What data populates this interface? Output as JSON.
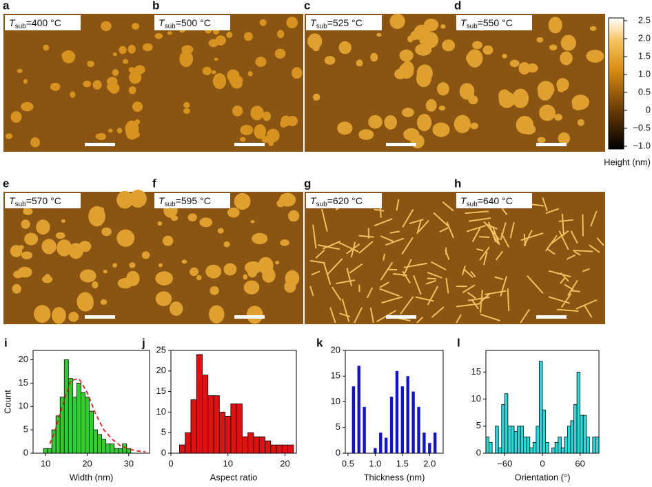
{
  "figure": {
    "panels": [
      {
        "letter": "a",
        "tag": {
          "symbol": "T",
          "subscript": "sub",
          "value": "=400 °C"
        }
      },
      {
        "letter": "b",
        "tag": {
          "symbol": "T",
          "subscript": "sub",
          "value": "=500 °C"
        }
      },
      {
        "letter": "c",
        "tag": {
          "symbol": "T",
          "subscript": "sub",
          "value": "=525 °C"
        }
      },
      {
        "letter": "d",
        "tag": {
          "symbol": "T",
          "subscript": "sub",
          "value": "=550 °C"
        }
      },
      {
        "letter": "e",
        "tag": {
          "symbol": "T",
          "subscript": "sub",
          "value": "=570 °C"
        }
      },
      {
        "letter": "f",
        "tag": {
          "symbol": "T",
          "subscript": "sub",
          "value": "=595 °C"
        }
      },
      {
        "letter": "g",
        "tag": {
          "symbol": "T",
          "subscript": "sub",
          "value": "=620 °C"
        }
      },
      {
        "letter": "h",
        "tag": {
          "symbol": "T",
          "subscript": "sub",
          "value": "=640 °C"
        }
      }
    ],
    "colorbar": {
      "label": "Height (nm)",
      "range": [
        -1,
        2.5
      ],
      "ticks": [
        2.5,
        {
          "value": 2,
          "label": "2.0"
        },
        1.5,
        {
          "value": 1,
          "label": "1.0"
        },
        0.5,
        0,
        {
          "value": -0.5,
          "label": "−0.5"
        },
        {
          "value": -1,
          "label": "−1.0"
        }
      ]
    }
  },
  "chart_data": [
    {
      "type": "histogram",
      "panel_label": "i",
      "xlabel": "Width (nm)",
      "ylabel": "Count",
      "color": "#33cc33",
      "bins": [
        9.5,
        10.5,
        11.5,
        12.5,
        13.5,
        14.5,
        15.5,
        16.5,
        17.5,
        18.5,
        19.5,
        20.5,
        21.5,
        22.5,
        23.5,
        24.5,
        25.5,
        26.5,
        27.5,
        28.5,
        29.5,
        30.5
      ],
      "values": [
        1,
        1,
        5,
        8,
        12,
        20,
        16,
        12,
        15,
        13,
        12,
        9,
        5,
        4,
        3,
        2,
        2,
        1,
        1,
        2,
        1
      ],
      "fit": {
        "color": "#e02020",
        "x": [
          11,
          12,
          14,
          16,
          18,
          20,
          22,
          24,
          26,
          28,
          30,
          32,
          34
        ],
        "values": [
          2,
          4,
          10,
          15.5,
          16,
          13,
          8.5,
          5,
          3,
          1.6,
          0.9,
          0.5,
          0.3
        ]
      },
      "xlim": [
        7,
        35
      ],
      "xticks": [
        10,
        20,
        30
      ],
      "ylim": [
        0,
        22
      ],
      "yticks": [
        0,
        5,
        10,
        15,
        20
      ]
    },
    {
      "type": "histogram",
      "panel_label": "j",
      "xlabel": "Aspect ratio",
      "color": "#e01010",
      "bins": [
        1.5,
        2.5,
        3.5,
        4.5,
        5.5,
        6.5,
        7.5,
        8.5,
        9.5,
        10.5,
        11.5,
        12.5,
        13.5,
        14.5,
        15.5,
        16.5,
        17.5,
        18.5,
        19.5,
        20.5,
        21.5
      ],
      "values": [
        2,
        5,
        13,
        24,
        19,
        14,
        14,
        10,
        9,
        12,
        12,
        4,
        5,
        4,
        4,
        3,
        2,
        2,
        2,
        2
      ],
      "xlim": [
        0,
        22
      ],
      "xticks": [
        0,
        10,
        20
      ],
      "ylim": [
        0,
        25
      ],
      "yticks": [
        0,
        5,
        10,
        15,
        20,
        25
      ]
    },
    {
      "type": "bar",
      "panel_label": "k",
      "xlabel": "Thickness (nm)",
      "color": "#1010dd",
      "x": [
        0.6,
        0.7,
        0.8,
        1.0,
        1.1,
        1.2,
        1.3,
        1.4,
        1.5,
        1.6,
        1.7,
        1.8,
        1.9,
        2.0,
        2.1
      ],
      "values": [
        13,
        17,
        9,
        1,
        4,
        3,
        11,
        16,
        13,
        15,
        12,
        9,
        4,
        2,
        4
      ],
      "xlim": [
        0.45,
        2.25
      ],
      "xticks": [
        0.5,
        {
          "value": 1,
          "label": "1.0"
        },
        1.5,
        {
          "value": 2,
          "label": "2.0"
        }
      ],
      "ylim": [
        0,
        20
      ],
      "yticks": [
        0,
        5,
        10,
        15,
        20
      ]
    },
    {
      "type": "histogram",
      "panel_label": "l",
      "xlabel": "Orientation (°)",
      "color": "#22dddd",
      "bins": [
        -90,
        -85,
        -80,
        -75,
        -70,
        -65,
        -60,
        -55,
        -50,
        -45,
        -40,
        -35,
        -30,
        -25,
        -20,
        -15,
        -10,
        -5,
        0,
        5,
        10,
        15,
        20,
        25,
        30,
        35,
        40,
        45,
        50,
        55,
        60,
        65,
        70,
        75,
        80,
        85,
        90
      ],
      "values": [
        3,
        2,
        0,
        5,
        1,
        9,
        11,
        5,
        5,
        4,
        5,
        5,
        3,
        3,
        1,
        2,
        5,
        17,
        8,
        2,
        0,
        1,
        2,
        3,
        1,
        3,
        5,
        6,
        9,
        15,
        7,
        7,
        3,
        0,
        3,
        3
      ],
      "xlim": [
        -90,
        90
      ],
      "xticks": [
        {
          "value": -60,
          "label": "−60"
        },
        0,
        60
      ],
      "ylim": [
        0,
        19
      ],
      "yticks": [
        0,
        5,
        10,
        15
      ]
    }
  ]
}
